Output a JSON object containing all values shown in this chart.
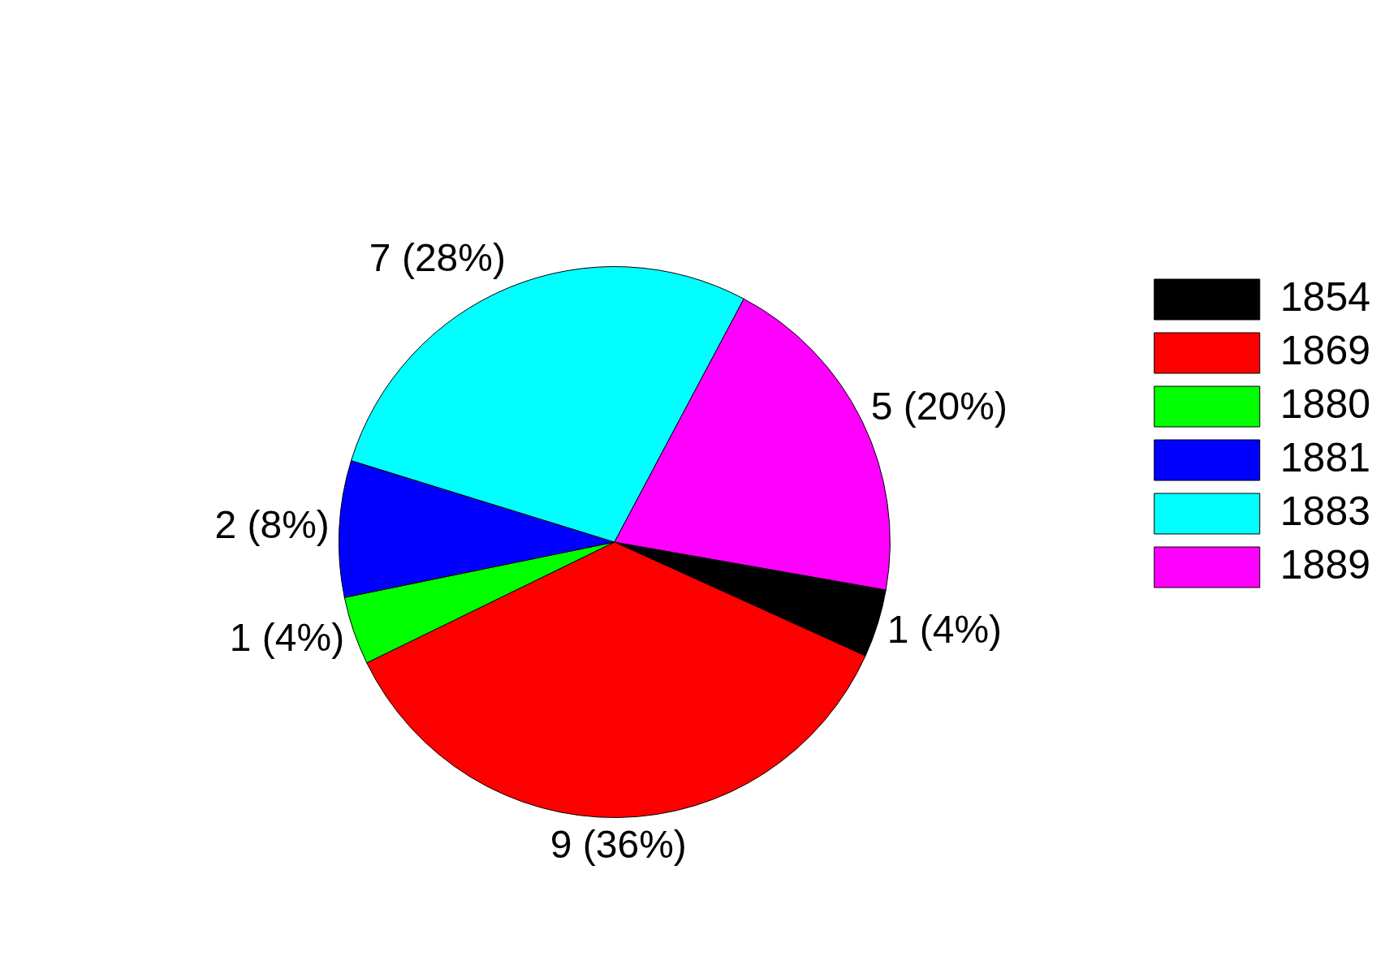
{
  "chart_data": {
    "type": "pie",
    "categories": [
      "1854",
      "1869",
      "1880",
      "1881",
      "1883",
      "1889"
    ],
    "values": [
      1,
      9,
      1,
      2,
      7,
      5
    ],
    "colors": [
      "#000000",
      "#ff0000",
      "#00ff00",
      "#0000ff",
      "#00ffff",
      "#ff00ff"
    ],
    "value_labels": [
      "1 (4%)",
      "9 (36%)",
      "1 (4%)",
      "2 (8%)",
      "7 (28%)",
      "5 (20%)"
    ],
    "legend": "top right"
  }
}
